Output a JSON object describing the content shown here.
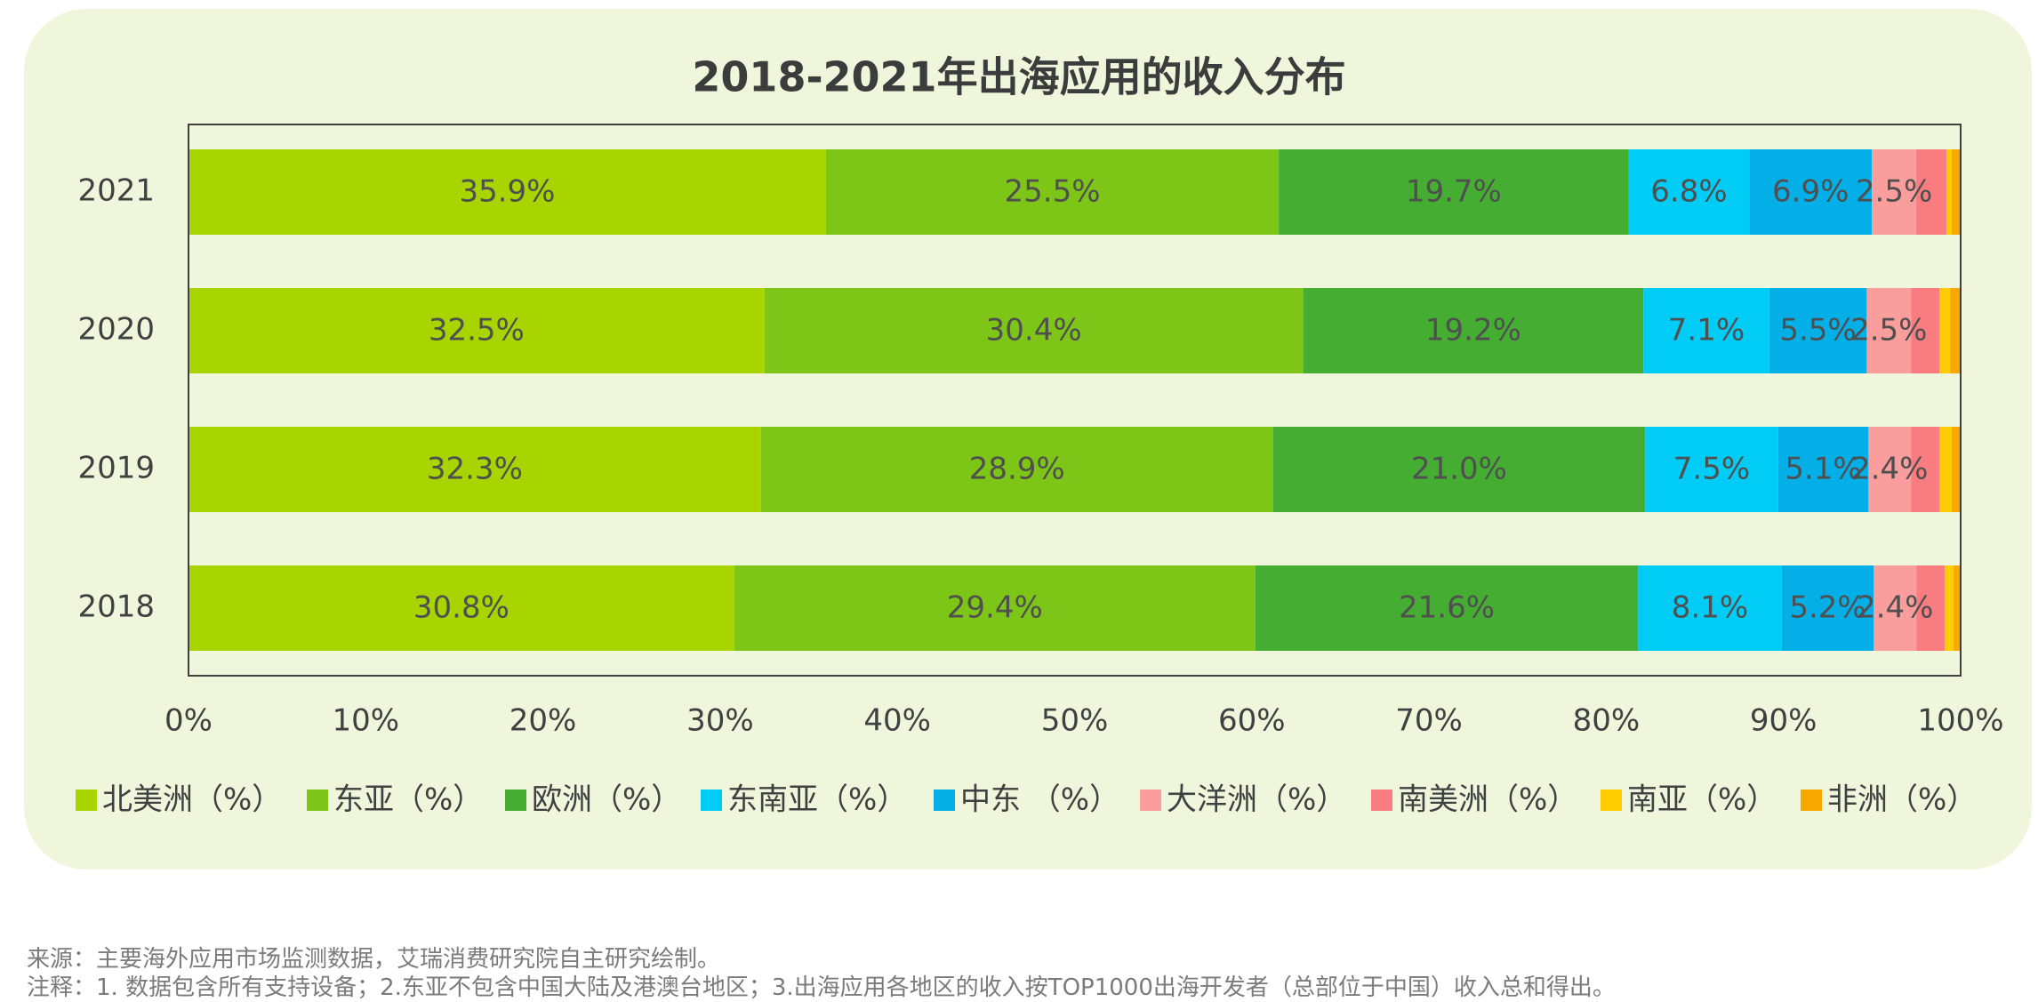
{
  "chart_data": {
    "type": "bar",
    "orientation": "horizontal",
    "stacked": true,
    "title": "2018-2021年出海应用的收入分布",
    "categories": [
      "2021",
      "2020",
      "2019",
      "2018"
    ],
    "xlim": [
      0,
      100
    ],
    "x_ticks": [
      "0%",
      "10%",
      "20%",
      "30%",
      "40%",
      "50%",
      "60%",
      "70%",
      "80%",
      "90%",
      "100%"
    ],
    "legend_position": "bottom",
    "series": [
      {
        "name": "北美洲（%）",
        "color": "#a8d400",
        "values": [
          35.9,
          32.5,
          32.3,
          30.8
        ],
        "labels": [
          "35.9%",
          "32.5%",
          "32.3%",
          "30.8%"
        ]
      },
      {
        "name": "东亚（%）",
        "color": "#7dc516",
        "values": [
          25.5,
          30.4,
          28.9,
          29.4
        ],
        "labels": [
          "25.5%",
          "30.4%",
          "28.9%",
          "29.4%"
        ]
      },
      {
        "name": "欧洲（%）",
        "color": "#45ae32",
        "values": [
          19.7,
          19.2,
          21.0,
          21.6
        ],
        "labels": [
          "19.7%",
          "19.2%",
          "21.0%",
          "21.6%"
        ]
      },
      {
        "name": "东南亚（%）",
        "color": "#00ccf5",
        "values": [
          6.8,
          7.1,
          7.5,
          8.1
        ],
        "labels": [
          "6.8%",
          "7.1%",
          "7.5%",
          "8.1%"
        ]
      },
      {
        "name": "中东 （%）",
        "color": "#03afe6",
        "values": [
          6.9,
          5.5,
          5.1,
          5.2
        ],
        "labels": [
          "6.9%",
          "5.5%",
          "5.1%",
          "5.2%"
        ]
      },
      {
        "name": "大洋洲（%）",
        "color": "#fa9d9d",
        "values": [
          2.5,
          2.5,
          2.4,
          2.4
        ],
        "labels": [
          "2.5%",
          "2.5%",
          "2.4%",
          "2.4%"
        ]
      },
      {
        "name": "南美洲（%）",
        "color": "#f97c80",
        "values": [
          1.7,
          1.6,
          1.6,
          1.6
        ],
        "labels": [
          "",
          "",
          "",
          ""
        ]
      },
      {
        "name": "南亚（%）",
        "color": "#ffcc00",
        "values": [
          0.3,
          0.6,
          0.7,
          0.5
        ],
        "labels": [
          "",
          "",
          "",
          ""
        ]
      },
      {
        "name": "非洲（%）",
        "color": "#f9a800",
        "values": [
          0.5,
          0.6,
          0.5,
          0.4
        ],
        "labels": [
          "",
          "",
          "",
          ""
        ]
      }
    ]
  },
  "footer": {
    "source": "来源：主要海外应用市场监测数据，艾瑞消费研究院自主研究绘制。",
    "note": "注释：1. 数据包含所有支持设备；2.东亚不包含中国大陆及港澳台地区；3.出海应用各地区的收入按TOP1000出海开发者（总部位于中国）收入总和得出。"
  }
}
